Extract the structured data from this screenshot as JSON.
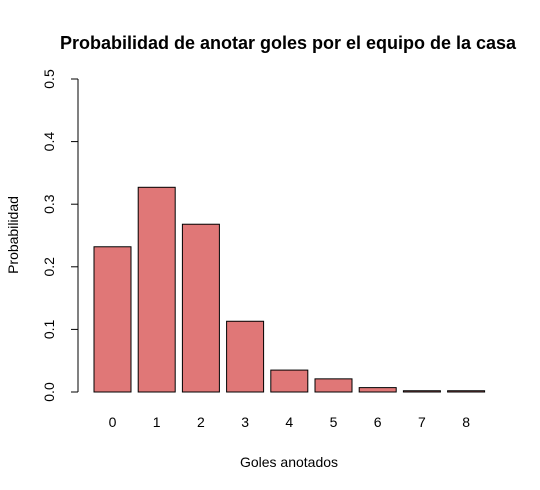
{
  "chart_data": {
    "type": "bar",
    "title": "Probabilidad de anotar goles por el equipo de la casa",
    "xlabel": "Goles anotados",
    "ylabel": "Probabilidad",
    "categories": [
      "0",
      "1",
      "2",
      "3",
      "4",
      "5",
      "6",
      "7",
      "8"
    ],
    "values": [
      0.232,
      0.327,
      0.268,
      0.113,
      0.035,
      0.021,
      0.007,
      0.002,
      0.002
    ],
    "ylim": [
      0,
      0.5
    ],
    "yticks": [
      "0.0",
      "0.1",
      "0.2",
      "0.3",
      "0.4",
      "0.5"
    ],
    "bar_color": "#e07777",
    "grid": false,
    "legend": "none"
  }
}
